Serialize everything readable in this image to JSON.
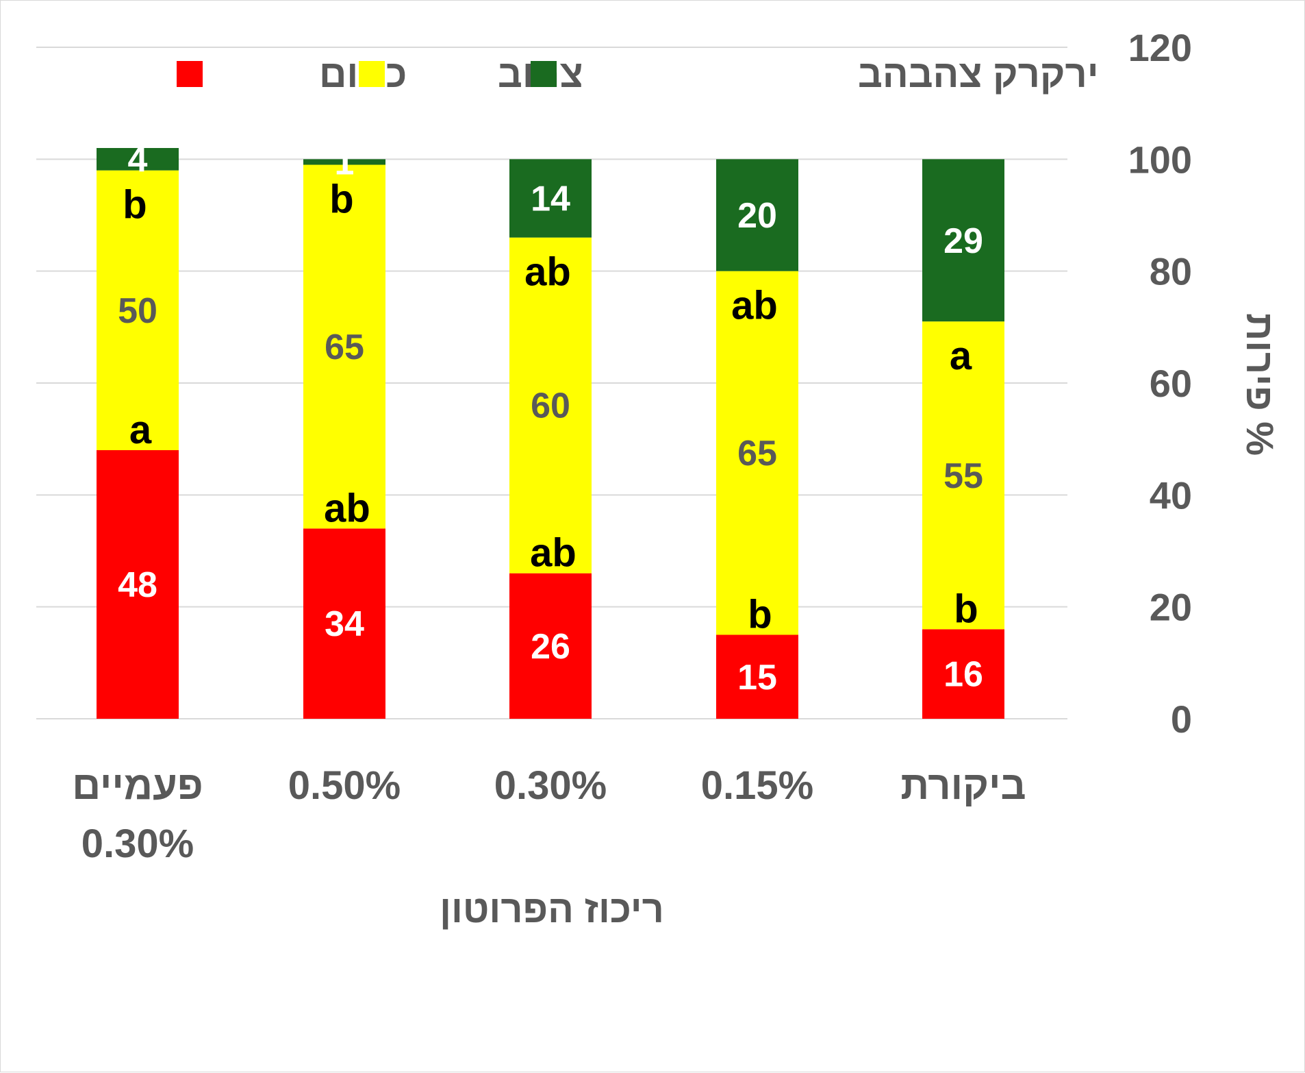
{
  "chart_data": {
    "type": "bar",
    "stacked": true,
    "categories": [
      "פעמיים 0.30%",
      "0.50%",
      "0.30%",
      "0.15%",
      "ביקורת"
    ],
    "category_lines": [
      [
        "פעמיים",
        "0.30%"
      ],
      [
        "0.50%"
      ],
      [
        "0.30%"
      ],
      [
        "0.15%"
      ],
      [
        "ביקורת"
      ]
    ],
    "series": [
      {
        "name": "כתום",
        "color": "#ff0000",
        "label_color": "#ffffff",
        "values": [
          48,
          34,
          26,
          15,
          16
        ]
      },
      {
        "name": "צהוב",
        "color": "#ffff00",
        "label_color": "#595959",
        "values": [
          50,
          65,
          60,
          65,
          55
        ]
      },
      {
        "name": "ירקרק צהבהב",
        "color": "#1a6b20",
        "label_color": "#ffffff",
        "values": [
          4,
          1,
          14,
          20,
          29
        ]
      }
    ],
    "significance_letters": {
      "כתום": [
        "a",
        "ab",
        "ab",
        "b",
        "b"
      ],
      "צהוב": [
        "b",
        "b",
        "ab",
        "ab",
        "a"
      ]
    },
    "xlabel": "ריכוז הפרוטון",
    "ylabel": "% פירות",
    "ylim": [
      0,
      120
    ],
    "yticks": [
      0,
      20,
      40,
      60,
      80,
      100,
      120
    ],
    "y_axis_side": "right",
    "category_order": "right-to-left",
    "grid": true,
    "gridline_color": "#d9d9d9",
    "legend": "top"
  }
}
